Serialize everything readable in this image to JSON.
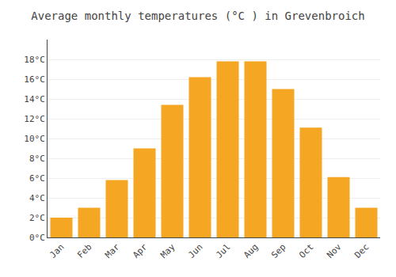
{
  "chart_data": {
    "type": "bar",
    "title": "Average monthly temperatures (°C ) in Grevenbroich",
    "categories": [
      "Jan",
      "Feb",
      "Mar",
      "Apr",
      "May",
      "Jun",
      "Jul",
      "Aug",
      "Sep",
      "Oct",
      "Nov",
      "Dec"
    ],
    "values": [
      2.0,
      3.0,
      5.8,
      9.0,
      13.4,
      16.2,
      17.8,
      17.8,
      15.0,
      11.1,
      6.1,
      3.0
    ],
    "color": "#F5A623",
    "ylim": [
      0,
      20
    ],
    "yticks": [
      {
        "value": 0,
        "label": "0°C"
      },
      {
        "value": 2,
        "label": "2°C"
      },
      {
        "value": 4,
        "label": "4°C"
      },
      {
        "value": 6,
        "label": "6°C"
      },
      {
        "value": 8,
        "label": "8°C"
      },
      {
        "value": 10,
        "label": "10°C"
      },
      {
        "value": 12,
        "label": "12°C"
      },
      {
        "value": 14,
        "label": "14°C"
      },
      {
        "value": 16,
        "label": "16°C"
      },
      {
        "value": 18,
        "label": "18°C"
      }
    ],
    "grid": true
  }
}
